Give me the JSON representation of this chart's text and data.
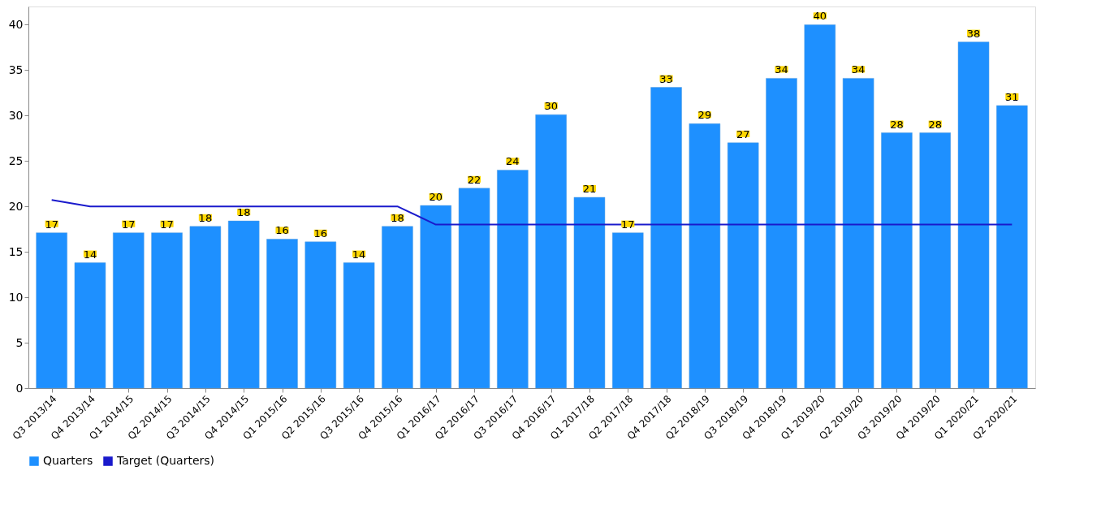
{
  "chart_data": {
    "type": "bar",
    "categories": [
      "Q3 2013/14",
      "Q4 2013/14",
      "Q1 2014/15",
      "Q2 2014/15",
      "Q3 2014/15",
      "Q4 2014/15",
      "Q1 2015/16",
      "Q2 2015/16",
      "Q3 2015/16",
      "Q4 2015/16",
      "Q1 2016/17",
      "Q2 2016/17",
      "Q3 2016/17",
      "Q4 2016/17",
      "Q1 2017/18",
      "Q2 2017/18",
      "Q4 2017/18",
      "Q2 2018/19",
      "Q3 2018/19",
      "Q4 2018/19",
      "Q1 2019/20",
      "Q2 2019/20",
      "Q3 2019/20",
      "Q4 2019/20",
      "Q1 2020/21",
      "Q2 2020/21"
    ],
    "series": [
      {
        "name": "Quarters",
        "color": "#1e90ff",
        "values": [
          17.1,
          13.8,
          17.1,
          17.1,
          17.8,
          18.4,
          16.4,
          16.1,
          13.8,
          17.8,
          20.1,
          22,
          24,
          30.1,
          21,
          17.1,
          33.1,
          29.1,
          27,
          34.1,
          40,
          34.1,
          28.1,
          28.1,
          38.1,
          31.1
        ],
        "value_labels": [
          "17",
          "14",
          "17",
          "17",
          "18",
          "18",
          "16",
          "16",
          "14",
          "18",
          "20",
          "22",
          "24",
          "30",
          "21",
          "17",
          "33",
          "29",
          "27",
          "34",
          "40",
          "34",
          "28",
          "28",
          "38",
          "31"
        ]
      },
      {
        "name": "Target (Quarters)",
        "type": "line",
        "color": "#1a1acc",
        "values": [
          20.7,
          20,
          20,
          20,
          20,
          20,
          20,
          20,
          20,
          20,
          18,
          18,
          18,
          18,
          18,
          18,
          18,
          18,
          18,
          18,
          18,
          18,
          18,
          18,
          18,
          18
        ]
      }
    ],
    "ylim": [
      0,
      42
    ],
    "yticks": [
      0,
      5,
      10,
      15,
      20,
      25,
      30,
      35,
      40
    ],
    "grid": false,
    "legend": "bottom",
    "marker": "none",
    "line_style": "solid"
  }
}
